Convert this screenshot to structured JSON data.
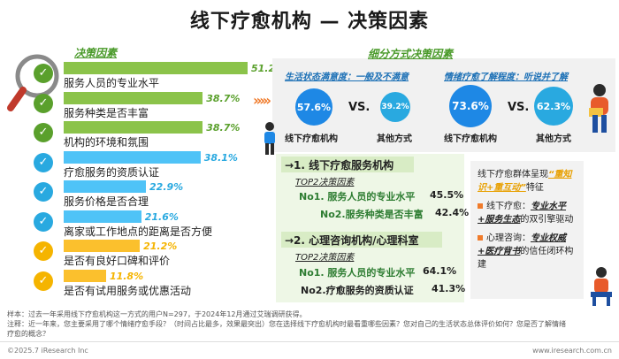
{
  "title": "线下疗愈机构 — 决策因素",
  "left_tag": "决策因素",
  "chart_data": {
    "type": "bar",
    "categories": [
      "服务人员的专业水平",
      "服务种类是否丰富",
      "机构的环境和氛围",
      "疗愈服务的资质认证",
      "服务价格是否合理",
      "离家或工作地点的距离是否方便",
      "是否有良好口碑和评价",
      "是否有试用服务或优惠活动"
    ],
    "values": [
      51.2,
      38.7,
      38.7,
      38.1,
      22.9,
      21.6,
      21.2,
      11.8
    ],
    "value_labels": [
      "51.2%",
      "38.7%",
      "38.7%",
      "38.1%",
      "22.9%",
      "21.6%",
      "21.2%",
      "11.8%"
    ],
    "colors": [
      "#8bc34a",
      "#8bc34a",
      "#8bc34a",
      "#4fc3f7",
      "#4fc3f7",
      "#4fc3f7",
      "#fbc02d",
      "#fbc02d"
    ],
    "check_colors": [
      "#5aa02c",
      "#5aa02c",
      "#5aa02c",
      "#29a9e0",
      "#29a9e0",
      "#29a9e0",
      "#f5b400",
      "#f5b400"
    ],
    "xlim": [
      0,
      55
    ]
  },
  "right_panel": {
    "title": "细分方式决策因素",
    "left": {
      "head": "生活状态满意度：一般及不满意",
      "a_val": "57.6%",
      "a_label": "线下疗愈机构",
      "vs": "VS.",
      "b_val": "39.2%",
      "b_label": "其他方式"
    },
    "right": {
      "head": "情绪疗愈了解程度：听说并了解",
      "a_val": "73.6%",
      "a_label": "线下疗愈机构",
      "vs": "VS.",
      "b_val": "62.3%",
      "b_label": "其他方式"
    },
    "colors": {
      "big": "#1e88e5",
      "small": "#29a9e0"
    }
  },
  "decisions": [
    {
      "title": "→1. 线下疗愈服务机构",
      "top2": "TOP2决策因素",
      "items": [
        {
          "label": "No1. 服务人员的专业水平",
          "value": "45.5%"
        },
        {
          "label": "No2.服务种类是否丰富",
          "value": "42.4%"
        }
      ]
    },
    {
      "title": "→2. 心理咨询机构/心理科室",
      "top2": "TOP2决策因素",
      "items": [
        {
          "label": "No1. 服务人员的专业水平",
          "value": "64.1%"
        },
        {
          "label": "No2.疗愈服务的资质认证",
          "value": "41.3%"
        }
      ]
    }
  ],
  "note": {
    "intro_a": "线下疗愈群体呈现",
    "intro_hl": "“重知识+重互动”",
    "intro_b": "特征",
    "p1_a": "线下疗愈：",
    "p1_hl": "专业水平+服务生态",
    "p1_b": "的双引擎驱动",
    "p2_a": "心理咨询：",
    "p2_hl": "专业权威+医疗背书",
    "p2_b": "的信任闭环构建"
  },
  "footer": {
    "line1": "样本：过去一年采用线下疗愈机构这一方式的用户N=297，于2024年12月通过艾瑞调研获得。",
    "line2": "注释：近一年来，您主要采用了哪个情绪疗愈手段？（时间占比最多，效果最突出）您在选择线下疗愈机构时最看重哪些因素？您对自己的生活状态总体评价如何？您是否了解情绪",
    "line3": "疗愈的概念？",
    "copyright": "©2025.7 iResearch Inc",
    "site": "www.iresearch.com.cn"
  },
  "colors": {
    "accent_green": "#4a9a2a",
    "accent_blue": "#1a6fb5",
    "accent_orange": "#f07b2b"
  }
}
